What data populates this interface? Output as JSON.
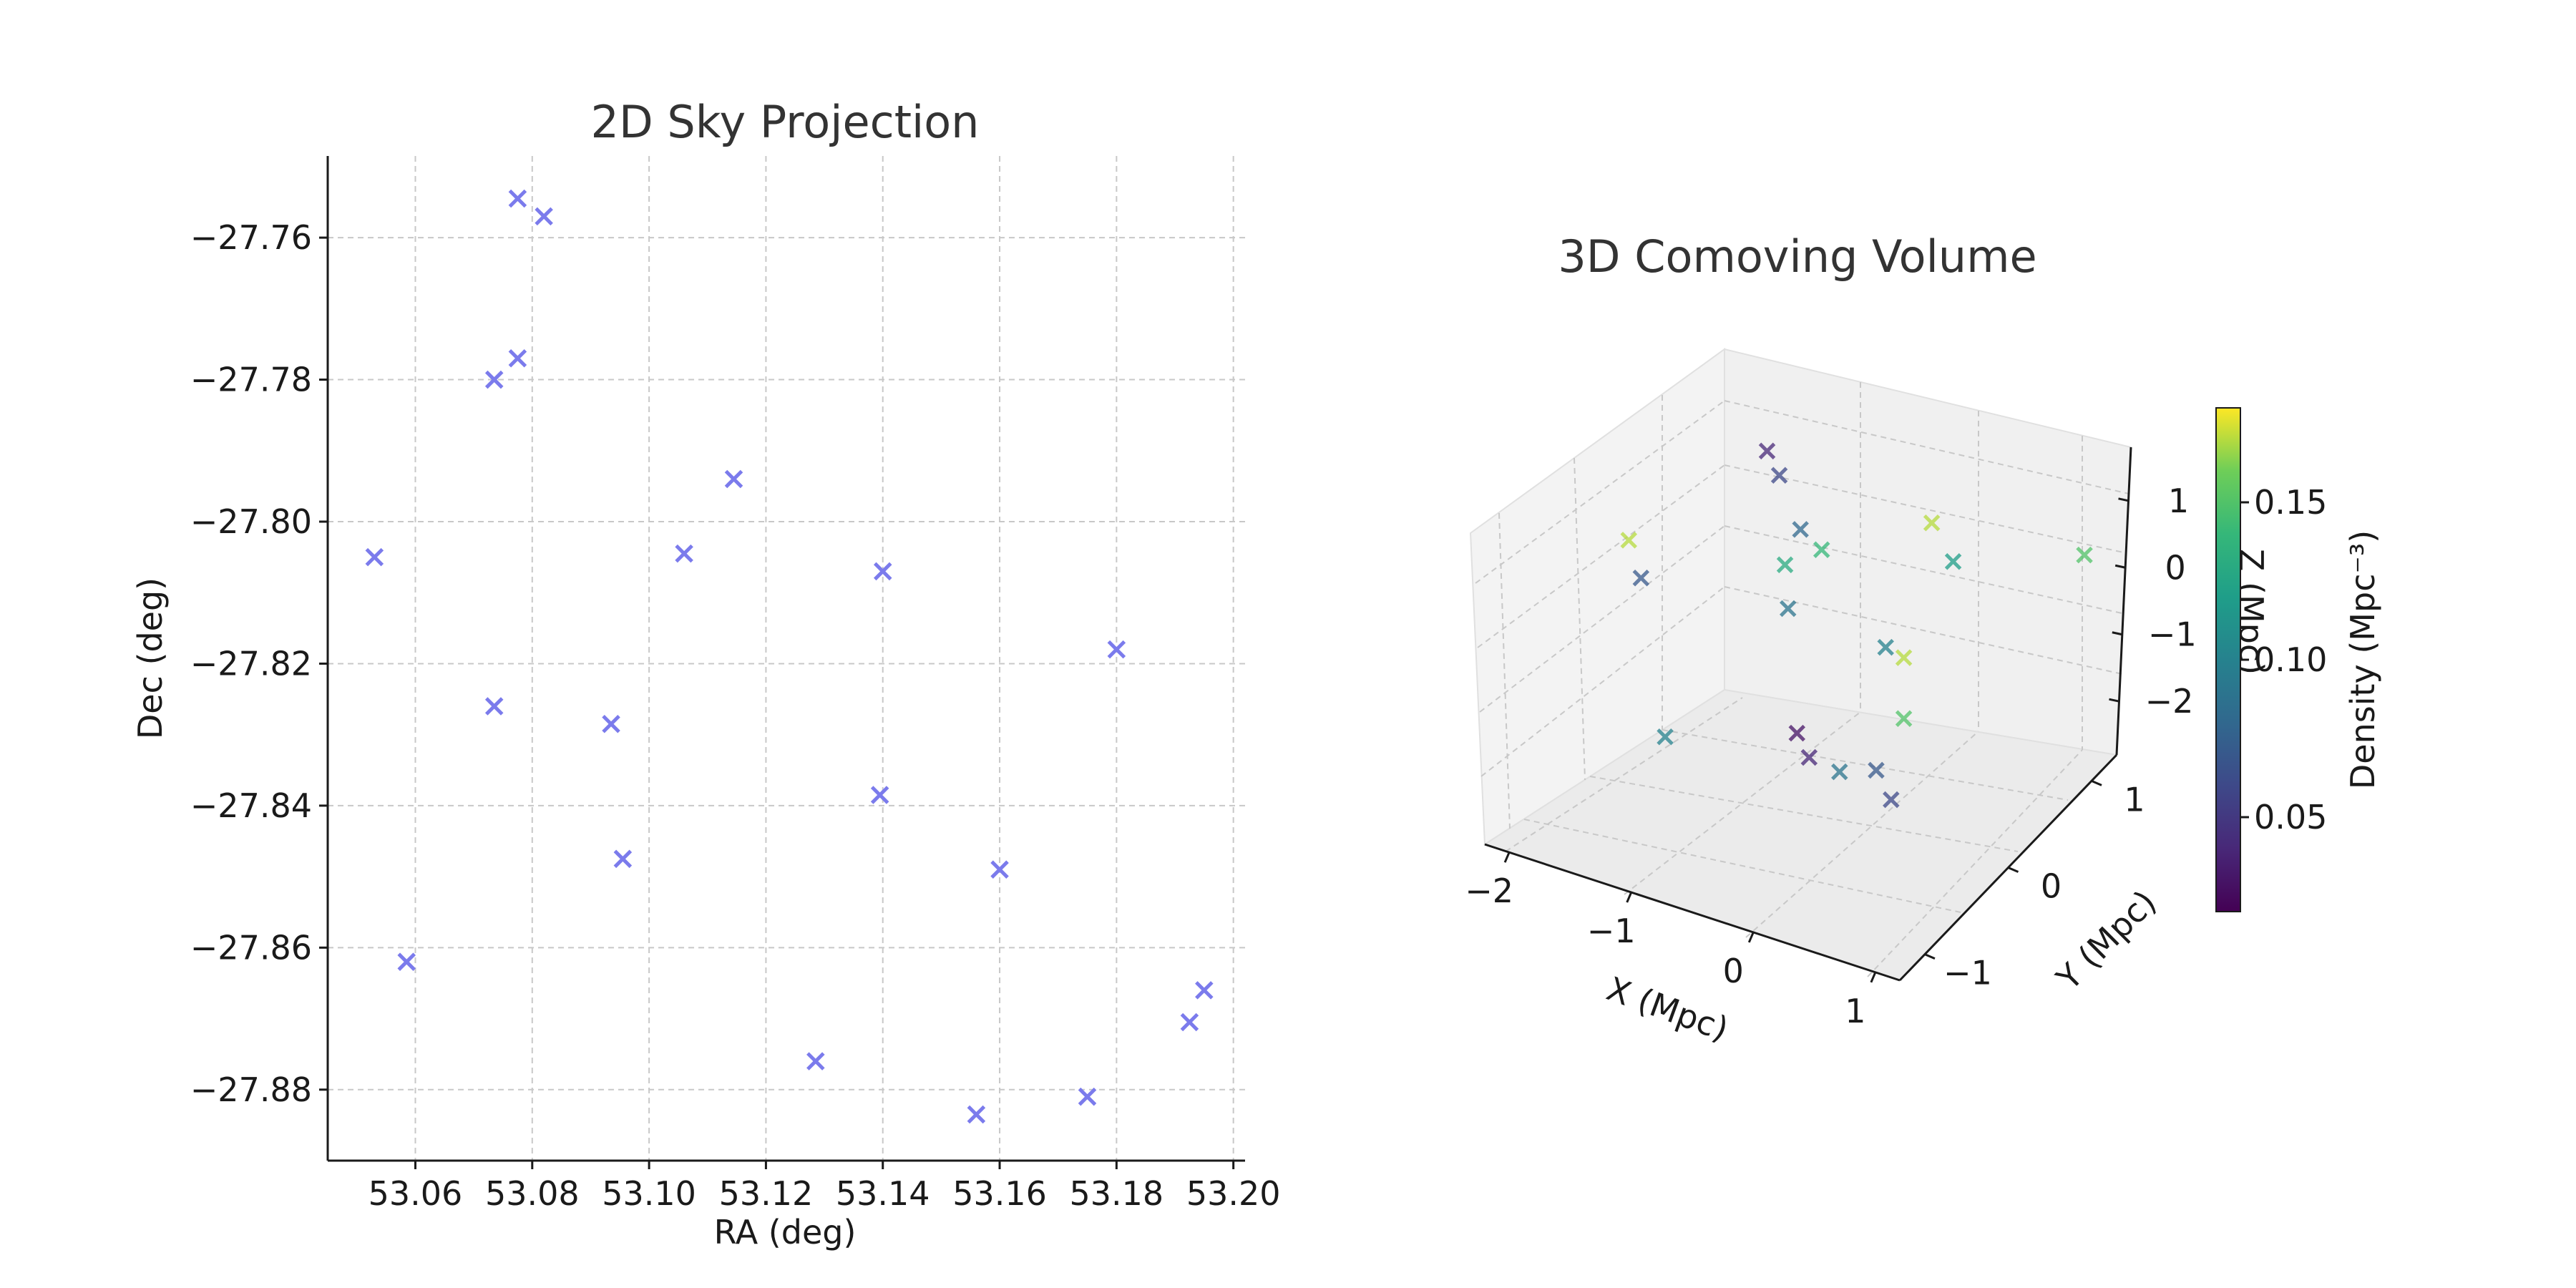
{
  "chart_data": [
    {
      "type": "scatter",
      "title": "2D Sky Projection",
      "xlabel": "RA (deg)",
      "ylabel": "Dec (deg)",
      "xlim": [
        53.045,
        53.202
      ],
      "ylim": [
        -27.89,
        -27.7485
      ],
      "xticks": [
        53.06,
        53.08,
        53.1,
        53.12,
        53.14,
        53.16,
        53.18,
        53.2
      ],
      "xtick_labels": [
        "53.06",
        "53.08",
        "53.10",
        "53.12",
        "53.14",
        "53.16",
        "53.18",
        "53.20"
      ],
      "yticks": [
        -27.76,
        -27.78,
        -27.8,
        -27.82,
        -27.84,
        -27.86,
        -27.88
      ],
      "ytick_labels": [
        "−27.76",
        "−27.78",
        "−27.80",
        "−27.82",
        "−27.84",
        "−27.86",
        "−27.88"
      ],
      "grid": true,
      "marker": "x",
      "color": "#7b7bec",
      "points": [
        [
          53.0775,
          -27.7545
        ],
        [
          53.082,
          -27.757
        ],
        [
          53.0775,
          -27.777
        ],
        [
          53.0735,
          -27.78
        ],
        [
          53.1145,
          -27.794
        ],
        [
          53.053,
          -27.805
        ],
        [
          53.106,
          -27.8045
        ],
        [
          53.14,
          -27.807
        ],
        [
          53.18,
          -27.818
        ],
        [
          53.0735,
          -27.826
        ],
        [
          53.0935,
          -27.8285
        ],
        [
          53.1395,
          -27.8385
        ],
        [
          53.0955,
          -27.8475
        ],
        [
          53.16,
          -27.849
        ],
        [
          53.0585,
          -27.862
        ],
        [
          53.195,
          -27.866
        ],
        [
          53.1925,
          -27.8705
        ],
        [
          53.1285,
          -27.876
        ],
        [
          53.175,
          -27.881
        ],
        [
          53.156,
          -27.8835
        ]
      ]
    },
    {
      "type": "scatter",
      "projection": "3d",
      "title": "3D Comoving Volume",
      "xlabel": "X (Mpc)",
      "ylabel": "Y (Mpc)",
      "zlabel": "Z (Mpc)",
      "xlim": [
        -2.2,
        1.2
      ],
      "ylim": [
        -1.3,
        1.3
      ],
      "zlim": [
        -2.8,
        1.8
      ],
      "xticks": [
        -2,
        -1,
        0,
        1
      ],
      "xtick_labels": [
        "−2",
        "−1",
        "0",
        "1"
      ],
      "yticks": [
        -1,
        0,
        1
      ],
      "ytick_labels": [
        "−1",
        "0",
        "1"
      ],
      "zticks": [
        -2,
        -1,
        0,
        1
      ],
      "ztick_labels": [
        "−2",
        "−1",
        "0",
        "1"
      ],
      "grid": true,
      "marker": "x",
      "colorbar": {
        "label": "Density (Mpc⁻³)",
        "colormap": "viridis",
        "range": [
          0.02,
          0.18
        ],
        "ticks": [
          0.05,
          0.1,
          0.15
        ],
        "tick_labels": [
          "0.05",
          "0.10",
          "0.15"
        ]
      },
      "points": [
        {
          "x": -1.7,
          "y": 1.1,
          "z": 1.2,
          "density": 0.04
        },
        {
          "x": -1.6,
          "y": 1.1,
          "z": 0.9,
          "density": 0.06
        },
        {
          "x": -0.2,
          "y": 0.9,
          "z": 1.2,
          "density": 0.17
        },
        {
          "x": -1.7,
          "y": -0.4,
          "z": 1.2,
          "density": 0.17
        },
        {
          "x": -1.6,
          "y": -0.4,
          "z": 0.7,
          "density": 0.07
        },
        {
          "x": -1.2,
          "y": 0.8,
          "z": 0.6,
          "density": 0.08
        },
        {
          "x": -1.1,
          "y": 0.5,
          "z": 0.4,
          "density": 0.13
        },
        {
          "x": -0.8,
          "y": 0.5,
          "z": 0.8,
          "density": 0.14
        },
        {
          "x": -0.1,
          "y": 1.0,
          "z": 0.6,
          "density": 0.12
        },
        {
          "x": -1.0,
          "y": 0.4,
          "z": -0.1,
          "density": 0.09
        },
        {
          "x": -0.2,
          "y": 0.4,
          "z": -0.2,
          "density": 0.1
        },
        {
          "x": 0.1,
          "y": 0.2,
          "z": 0.0,
          "density": 0.17
        },
        {
          "x": 0.1,
          "y": 0.2,
          "z": -0.9,
          "density": 0.15
        },
        {
          "x": 0.9,
          "y": 1.1,
          "z": 1.2,
          "density": 0.15
        },
        {
          "x": -0.7,
          "y": 0.1,
          "z": -1.5,
          "density": 0.03
        },
        {
          "x": -0.6,
          "y": 0.1,
          "z": -1.8,
          "density": 0.04
        },
        {
          "x": -0.2,
          "y": -0.1,
          "z": -1.6,
          "density": 0.09
        },
        {
          "x": 0.1,
          "y": -0.1,
          "z": -1.4,
          "density": 0.07
        },
        {
          "x": -1.1,
          "y": -0.8,
          "z": -1.0,
          "density": 0.1
        },
        {
          "x": 0.6,
          "y": -0.6,
          "z": -1.1,
          "density": 0.06
        }
      ]
    }
  ]
}
